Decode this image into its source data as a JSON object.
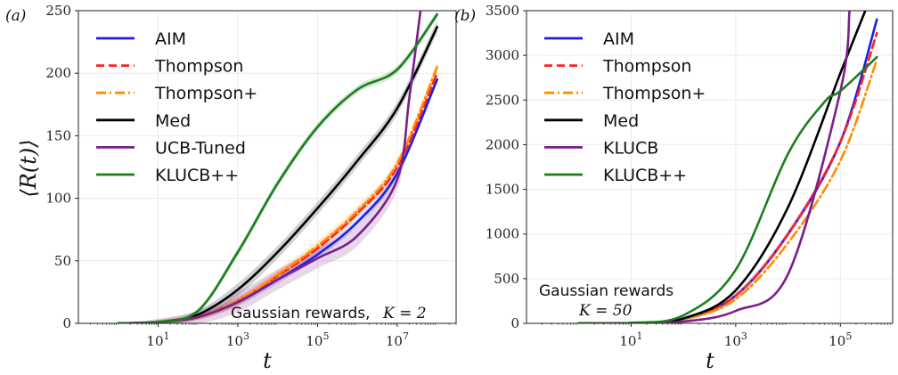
{
  "chart_data": [
    {
      "type": "line",
      "panel_label": "(a)",
      "xlabel": "t",
      "ylabel": "⟨R(t)⟩",
      "xscale": "log",
      "xlim": [
        0.1,
        300000000
      ],
      "ylim": [
        0,
        250
      ],
      "xticks": [
        10,
        1000,
        100000,
        10000000
      ],
      "xtick_labels": [
        "10^1",
        "10^3",
        "10^5",
        "10^7"
      ],
      "yticks": [
        0,
        50,
        100,
        150,
        200,
        250
      ],
      "grid": true,
      "legend_placement": "top-left",
      "annotation": {
        "text": "Gaussian rewards,",
        "math": "K = 2"
      },
      "series": [
        {
          "name": "AIM",
          "color": "#1f1fe0",
          "dash": "solid",
          "x": [
            1,
            10,
            100,
            1000,
            10000,
            100000,
            1000000,
            10000000,
            100000000
          ],
          "y": [
            0,
            1,
            5,
            17,
            35,
            55,
            81,
            120,
            195
          ],
          "band": 3
        },
        {
          "name": "Thompson",
          "color": "#ff2020",
          "dash": "dashed",
          "x": [
            1,
            10,
            100,
            1000,
            10000,
            100000,
            1000000,
            10000000,
            100000000
          ],
          "y": [
            0,
            1,
            5,
            18,
            38,
            60,
            88,
            125,
            200
          ],
          "band": 3
        },
        {
          "name": "Thompson+",
          "color": "#ff8c00",
          "dash": "dashdot",
          "x": [
            1,
            10,
            100,
            1000,
            10000,
            100000,
            1000000,
            10000000,
            100000000
          ],
          "y": [
            0,
            1,
            5,
            18,
            39,
            62,
            90,
            128,
            205
          ],
          "band": 4
        },
        {
          "name": "Med",
          "color": "#000000",
          "dash": "solid",
          "x": [
            1,
            10,
            100,
            1000,
            10000,
            100000,
            1000000,
            10000000,
            100000000
          ],
          "y": [
            0,
            1,
            7,
            27,
            57,
            92,
            130,
            172,
            237
          ],
          "band": 5
        },
        {
          "name": "UCB-Tuned",
          "color": "#7a1f8c",
          "dash": "solid",
          "x": [
            1,
            10,
            100,
            1000,
            10000,
            100000,
            1000000,
            10000000,
            20000000,
            40000000
          ],
          "y": [
            0,
            1,
            5,
            17,
            35,
            52,
            70,
            115,
            180,
            255
          ],
          "band": 8
        },
        {
          "name": "KLUCB++",
          "color": "#1a7f1a",
          "dash": "solid",
          "x": [
            1,
            10,
            100,
            1000,
            10000,
            100000,
            1000000,
            10000000,
            100000000
          ],
          "y": [
            0,
            1,
            10,
            57,
            112,
            157,
            187,
            203,
            247
          ],
          "band": 3
        }
      ]
    },
    {
      "type": "line",
      "panel_label": "(b)",
      "xlabel": "t",
      "ylabel": "",
      "xscale": "log",
      "xlim": [
        0.1,
        1000000
      ],
      "ylim": [
        0,
        3500
      ],
      "xticks": [
        10,
        1000,
        100000
      ],
      "xtick_labels": [
        "10^1",
        "10^3",
        "10^5"
      ],
      "yticks": [
        0,
        500,
        1000,
        1500,
        2000,
        2500,
        3000,
        3500
      ],
      "grid": true,
      "legend_placement": "top-left",
      "annotation": {
        "text": "Gaussian rewards",
        "math": "K = 50"
      },
      "series": [
        {
          "name": "AIM",
          "color": "#1f1fe0",
          "dash": "solid",
          "x": [
            1,
            10,
            100,
            1000,
            10000,
            100000,
            500000
          ],
          "y": [
            0,
            3,
            50,
            310,
            1000,
            2030,
            3400
          ],
          "band": 40
        },
        {
          "name": "Thompson",
          "color": "#ff2020",
          "dash": "dashed",
          "x": [
            1,
            10,
            100,
            1000,
            10000,
            100000,
            500000
          ],
          "y": [
            0,
            3,
            50,
            310,
            1000,
            2030,
            3250
          ],
          "band": 0
        },
        {
          "name": "Thompson+",
          "color": "#ff8c00",
          "dash": "dashdot",
          "x": [
            1,
            10,
            100,
            1000,
            10000,
            100000,
            500000
          ],
          "y": [
            0,
            3,
            45,
            270,
            900,
            1820,
            2950
          ],
          "band": 0
        },
        {
          "name": "Med",
          "color": "#000000",
          "dash": "solid",
          "x": [
            1,
            10,
            100,
            1000,
            10000,
            100000,
            300000
          ],
          "y": [
            0,
            3,
            55,
            370,
            1300,
            2800,
            3500
          ],
          "band": 0
        },
        {
          "name": "KLUCB",
          "color": "#7a1f8c",
          "dash": "solid",
          "x": [
            1,
            10,
            100,
            1000,
            10000,
            100000,
            150000
          ],
          "y": [
            0,
            1,
            20,
            140,
            550,
            2600,
            3500
          ],
          "band": 0
        },
        {
          "name": "KLUCB++",
          "color": "#1a7f1a",
          "dash": "solid",
          "x": [
            1,
            10,
            100,
            1000,
            10000,
            50000,
            100000,
            500000
          ],
          "y": [
            0,
            5,
            90,
            600,
            1900,
            2480,
            2600,
            2980
          ],
          "band": 0
        }
      ]
    }
  ]
}
